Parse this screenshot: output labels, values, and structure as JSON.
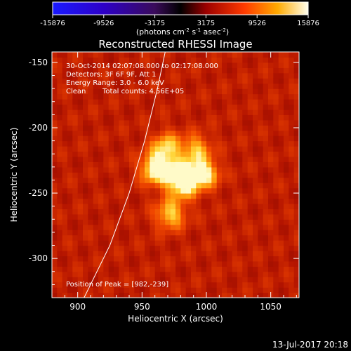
{
  "chart_data": {
    "type": "heatmap",
    "title": "Reconstructed RHESSI Image",
    "xlabel": "Heliocentric X (arcsec)",
    "ylabel": "Heliocentric Y (arcsec)",
    "xlim": [
      880,
      1072
    ],
    "ylim": [
      -330,
      -142
    ],
    "xticks": [
      900,
      950,
      1000,
      1050
    ],
    "yticks": [
      -150,
      -200,
      -250,
      -300
    ],
    "colorbar": {
      "ticks": [
        "-15876",
        "-9526",
        "-3175",
        "3175",
        "9526",
        "15876"
      ],
      "range": [
        -15876,
        15876
      ],
      "units_main": "(photons cm",
      "units_exp1": "-2",
      "units_mid": " s",
      "units_exp2": "-1",
      "units_end": " asec",
      "units_exp3": "-2",
      "units_close": ")"
    },
    "annotations": {
      "time_range": "30-Oct-2014 02:07:08.000 to 02:17:08.000",
      "detectors": "Detectors: 3F 6F 9F, Att 1",
      "energy": "Energy Range: 3.0 - 6.0 keV",
      "method": "Clean",
      "counts": "Total counts: 4.56E+05",
      "peak": "Position of Peak = [982,-239]"
    },
    "peak": [
      982,
      -239
    ],
    "sources": [
      {
        "x": 982,
        "y": -239,
        "sigma": 9,
        "amp": 1.0
      },
      {
        "x": 961,
        "y": -231,
        "sigma": 8,
        "amp": 0.8
      },
      {
        "x": 969,
        "y": -215,
        "sigma": 8,
        "amp": 0.55
      },
      {
        "x": 992,
        "y": -217,
        "sigma": 8,
        "amp": 0.5
      },
      {
        "x": 1000,
        "y": -235,
        "sigma": 7,
        "amp": 0.6
      },
      {
        "x": 972,
        "y": -266,
        "sigma": 8,
        "amp": 0.55
      }
    ],
    "background_level": 0.35,
    "limb_curve": [
      [
        905,
        -330
      ],
      [
        925,
        -290
      ],
      [
        940,
        -250
      ],
      [
        952,
        -210
      ],
      [
        962,
        -170
      ],
      [
        968,
        -142
      ]
    ],
    "footer": "13-Jul-2017 20:18"
  }
}
